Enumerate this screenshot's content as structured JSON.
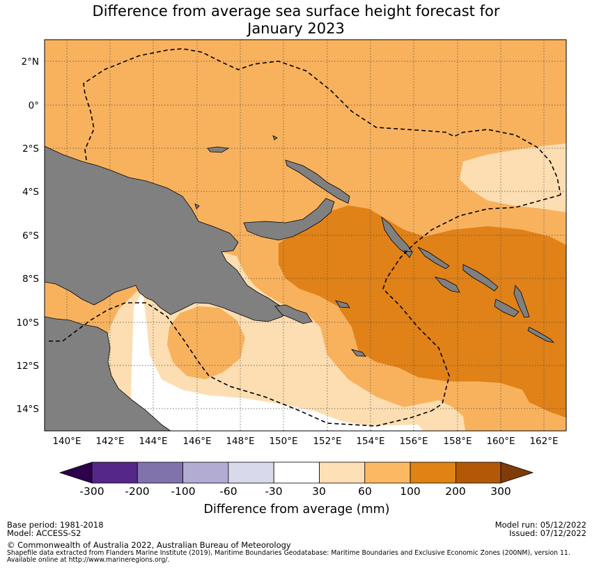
{
  "title_line1": "Difference from average sea surface height forecast for",
  "title_line2": "January 2023",
  "map": {
    "lat_labels": [
      "2°N",
      "0°",
      "2°S",
      "4°S",
      "6°S",
      "8°S",
      "10°S",
      "12°S",
      "14°S"
    ],
    "lon_labels": [
      "140°E",
      "142°E",
      "144°E",
      "146°E",
      "148°E",
      "150°E",
      "152°E",
      "154°E",
      "156°E",
      "158°E",
      "160°E",
      "162°E"
    ],
    "colors": {
      "land": "#808080",
      "above_60_100": "#f8b25e",
      "above_100_200": "#e08218",
      "above_30_60": "#fddeb2",
      "near_average": "#ffffff"
    }
  },
  "colorbar": {
    "label": "Difference from average (mm)",
    "ticks": [
      "-300",
      "-200",
      "-100",
      "-60",
      "-30",
      "30",
      "60",
      "100",
      "200",
      "300"
    ],
    "colors": [
      "#2d004b",
      "#542788",
      "#8073ac",
      "#b2abd2",
      "#d8daeb",
      "#ffffff",
      "#fee0b6",
      "#fdb863",
      "#e08214",
      "#b35806",
      "#7f3b08"
    ]
  },
  "footer": {
    "base_period": "Base period: 1981-2018",
    "model": "Model: ACCESS-S2",
    "model_run": "Model run: 05/12/2022",
    "issued": "Issued: 07/12/2022",
    "copyright": "© Commonwealth of Australia 2022, Australian Bureau of Meteorology",
    "shapefile_line1": "Shapefile data extracted from Flanders Marine Institute (2019), Maritime Boundaries Geodatabase: Maritime Boundaries and Exclusive Economic Zones (200NM), version 11.",
    "shapefile_line2": "Available online at http://www.marineregions.org/."
  }
}
